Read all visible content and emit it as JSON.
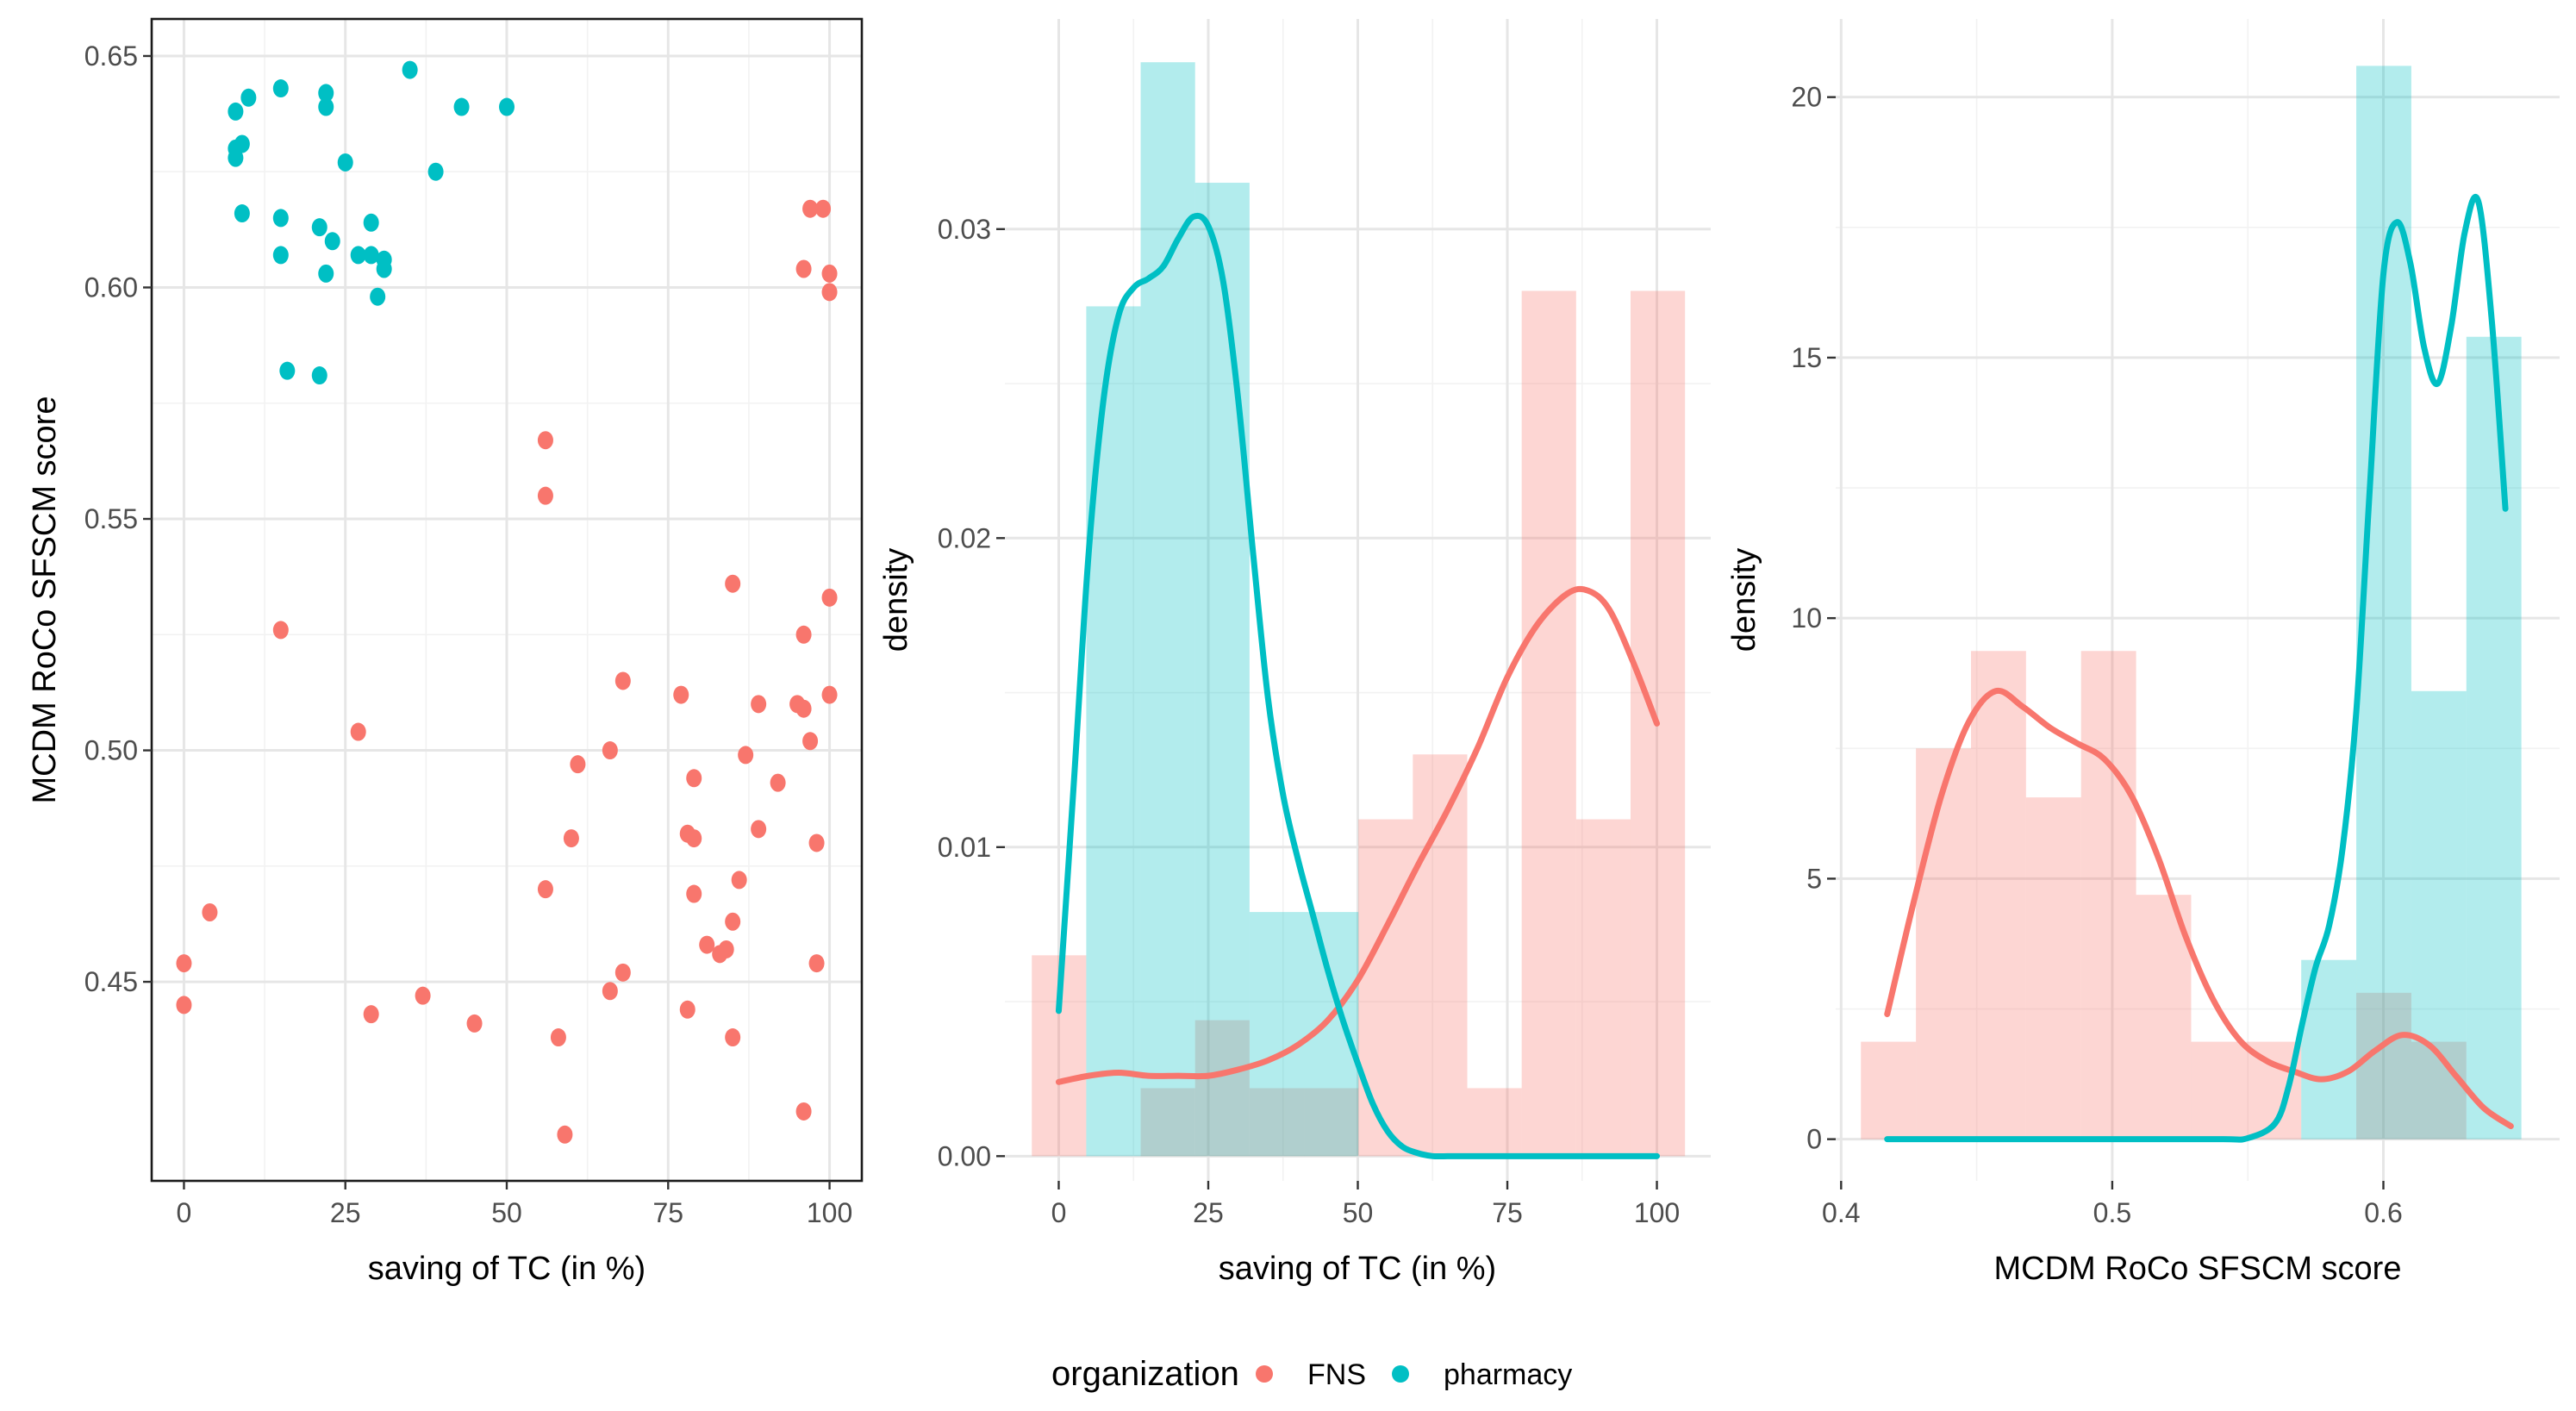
{
  "colors": {
    "FNS": "#F8766D",
    "pharmacy": "#00BFC4"
  },
  "legend": {
    "title": "organization",
    "items": [
      {
        "key": "FNS",
        "label": "FNS"
      },
      {
        "key": "pharmacy",
        "label": "pharmacy"
      }
    ]
  },
  "chart_data": [
    {
      "type": "scatter",
      "xlabel": "saving of TC (in %)",
      "ylabel": "MCDM RoCo SFSCM score",
      "xlim": [
        -5,
        105
      ],
      "ylim": [
        0.407,
        0.658
      ],
      "xticks": [
        0,
        25,
        50,
        75,
        100
      ],
      "xtick_labels": [
        "0",
        "25",
        "50",
        "75",
        "100"
      ],
      "yticks": [
        0.45,
        0.5,
        0.55,
        0.6,
        0.65
      ],
      "ytick_labels": [
        "0.45",
        "0.50",
        "0.55",
        "0.60",
        "0.65"
      ],
      "grid": true,
      "border": true,
      "series": [
        {
          "name": "pharmacy",
          "points": [
            [
              8,
              0.638
            ],
            [
              10,
              0.641
            ],
            [
              15,
              0.643
            ],
            [
              22,
              0.642
            ],
            [
              22,
              0.639
            ],
            [
              35,
              0.647
            ],
            [
              43,
              0.639
            ],
            [
              50,
              0.639
            ],
            [
              8,
              0.628
            ],
            [
              9,
              0.631
            ],
            [
              8,
              0.63
            ],
            [
              25,
              0.627
            ],
            [
              39,
              0.625
            ],
            [
              9,
              0.616
            ],
            [
              15,
              0.615
            ],
            [
              29,
              0.614
            ],
            [
              21,
              0.613
            ],
            [
              23,
              0.61
            ],
            [
              15,
              0.607
            ],
            [
              27,
              0.607
            ],
            [
              29,
              0.607
            ],
            [
              31,
              0.606
            ],
            [
              31,
              0.604
            ],
            [
              22,
              0.603
            ],
            [
              30,
              0.598
            ],
            [
              16,
              0.582
            ],
            [
              21,
              0.581
            ]
          ]
        },
        {
          "name": "FNS",
          "points": [
            [
              97,
              0.617
            ],
            [
              99,
              0.617
            ],
            [
              96,
              0.604
            ],
            [
              100,
              0.603
            ],
            [
              100,
              0.599
            ],
            [
              56,
              0.567
            ],
            [
              56,
              0.555
            ],
            [
              85,
              0.536
            ],
            [
              100,
              0.533
            ],
            [
              15,
              0.526
            ],
            [
              96,
              0.525
            ],
            [
              68,
              0.515
            ],
            [
              77,
              0.512
            ],
            [
              100,
              0.512
            ],
            [
              95,
              0.51
            ],
            [
              96,
              0.509
            ],
            [
              89,
              0.51
            ],
            [
              27,
              0.504
            ],
            [
              97,
              0.502
            ],
            [
              66,
              0.5
            ],
            [
              87,
              0.499
            ],
            [
              61,
              0.497
            ],
            [
              79,
              0.494
            ],
            [
              92,
              0.493
            ],
            [
              89,
              0.483
            ],
            [
              78,
              0.482
            ],
            [
              79,
              0.481
            ],
            [
              60,
              0.481
            ],
            [
              98,
              0.48
            ],
            [
              86,
              0.472
            ],
            [
              56,
              0.47
            ],
            [
              79,
              0.469
            ],
            [
              4,
              0.465
            ],
            [
              85,
              0.463
            ],
            [
              81,
              0.458
            ],
            [
              84,
              0.457
            ],
            [
              83,
              0.456
            ],
            [
              0,
              0.454
            ],
            [
              98,
              0.454
            ],
            [
              68,
              0.452
            ],
            [
              66,
              0.448
            ],
            [
              37,
              0.447
            ],
            [
              0,
              0.445
            ],
            [
              78,
              0.444
            ],
            [
              29,
              0.443
            ],
            [
              45,
              0.441
            ],
            [
              58,
              0.438
            ],
            [
              85,
              0.438
            ],
            [
              96,
              0.422
            ],
            [
              59,
              0.417
            ]
          ]
        }
      ]
    },
    {
      "type": "area",
      "xlabel": "saving of TC (in %)",
      "ylabel": "density",
      "xlim": [
        -9,
        109
      ],
      "ylim": [
        -0.0008,
        0.0368
      ],
      "xticks": [
        0,
        25,
        50,
        75,
        100
      ],
      "xtick_labels": [
        "0",
        "25",
        "50",
        "75",
        "100"
      ],
      "yticks": [
        0,
        0.01,
        0.02,
        0.03
      ],
      "ytick_labels": [
        "0.00",
        "0.01",
        "0.02",
        "0.03"
      ],
      "grid": true,
      "histogram": {
        "bin_width": 9.1,
        "series": [
          {
            "name": "FNS",
            "bins": [
              [
                -4.5,
                0.0065
              ],
              [
                4.6,
                0
              ],
              [
                13.7,
                0.0022
              ],
              [
                22.8,
                0.0044
              ],
              [
                31.9,
                0.0022
              ],
              [
                41.0,
                0.0022
              ],
              [
                50.1,
                0.0109
              ],
              [
                59.2,
                0.013
              ],
              [
                68.3,
                0.0022
              ],
              [
                77.4,
                0.028
              ],
              [
                86.5,
                0.0109
              ],
              [
                95.6,
                0.028
              ]
            ]
          },
          {
            "name": "pharmacy",
            "bins": [
              [
                4.6,
                0.0275
              ],
              [
                13.7,
                0.0354
              ],
              [
                22.8,
                0.0315
              ],
              [
                31.9,
                0.0079
              ],
              [
                41.0,
                0.0079
              ]
            ]
          }
        ]
      },
      "density": {
        "series": [
          {
            "name": "FNS",
            "x": [
              0,
              5,
              10,
              15,
              20,
              25,
              30,
              35,
              40,
              45,
              50,
              55,
              60,
              65,
              70,
              75,
              80,
              85,
              88.5,
              92,
              96,
              100
            ],
            "y": [
              0.0024,
              0.0026,
              0.0027,
              0.0026,
              0.0026,
              0.0026,
              0.0028,
              0.0031,
              0.0036,
              0.0044,
              0.0057,
              0.0075,
              0.0094,
              0.0112,
              0.0132,
              0.0155,
              0.0172,
              0.0182,
              0.0183,
              0.0177,
              0.016,
              0.014
            ]
          },
          {
            "name": "pharmacy",
            "x": [
              0,
              2.5,
              5,
              7.5,
              10,
              12.5,
              15,
              17.5,
              20,
              22.5,
              25,
              27.5,
              30,
              32.5,
              35,
              37.5,
              40,
              42.5,
              45,
              47.5,
              50,
              52.5,
              55,
              57.5,
              60,
              62.5,
              65,
              67.5,
              70,
              80,
              90,
              100
            ],
            "y": [
              0.0047,
              0.012,
              0.0195,
              0.0245,
              0.0272,
              0.0281,
              0.0284,
              0.0288,
              0.0297,
              0.0304,
              0.0301,
              0.0283,
              0.0245,
              0.0195,
              0.0148,
              0.0117,
              0.0096,
              0.0078,
              0.006,
              0.0044,
              0.003,
              0.0017,
              0.0008,
              0.0003,
              0.0001,
              0,
              0,
              0,
              0,
              0,
              0,
              0
            ]
          }
        ]
      }
    },
    {
      "type": "area",
      "xlabel": "MCDM RoCo SFSCM score",
      "ylabel": "density",
      "xlim": [
        0.398,
        0.665
      ],
      "ylim": [
        -0.8,
        21.5
      ],
      "xticks": [
        0.4,
        0.5,
        0.6
      ],
      "xtick_labels": [
        "0.4",
        "0.5",
        "0.6"
      ],
      "yticks": [
        0,
        5,
        10,
        15,
        20
      ],
      "ytick_labels": [
        "0",
        "5",
        "10",
        "15",
        "20"
      ],
      "grid": true,
      "histogram": {
        "bin_width": 0.0203,
        "series": [
          {
            "name": "FNS",
            "bins": [
              [
                0.4073,
                1.87
              ],
              [
                0.4276,
                7.5
              ],
              [
                0.4479,
                9.37
              ],
              [
                0.4682,
                6.56
              ],
              [
                0.4885,
                9.37
              ],
              [
                0.5088,
                4.69
              ],
              [
                0.5291,
                1.87
              ],
              [
                0.5494,
                1.87
              ],
              [
                0.5697,
                0
              ],
              [
                0.59,
                2.81
              ],
              [
                0.6103,
                1.87
              ]
            ]
          },
          {
            "name": "pharmacy",
            "bins": [
              [
                0.5697,
                3.44
              ],
              [
                0.59,
                20.6
              ],
              [
                0.6103,
                8.6
              ],
              [
                0.6306,
                15.4
              ]
            ]
          }
        ]
      },
      "density": {
        "series": [
          {
            "name": "FNS",
            "x": [
              0.417,
              0.427,
              0.437,
              0.447,
              0.457,
              0.467,
              0.477,
              0.487,
              0.497,
              0.507,
              0.517,
              0.527,
              0.537,
              0.547,
              0.557,
              0.567,
              0.577,
              0.587,
              0.597,
              0.607,
              0.617,
              0.627,
              0.637,
              0.647
            ],
            "y": [
              2.4,
              4.6,
              6.6,
              8.0,
              8.6,
              8.3,
              7.9,
              7.6,
              7.3,
              6.6,
              5.4,
              3.9,
              2.7,
              1.9,
              1.5,
              1.3,
              1.15,
              1.3,
              1.7,
              2.0,
              1.8,
              1.2,
              0.6,
              0.25
            ]
          },
          {
            "name": "pharmacy",
            "x": [
              0.417,
              0.45,
              0.5,
              0.54,
              0.55,
              0.56,
              0.565,
              0.57,
              0.575,
              0.58,
              0.585,
              0.59,
              0.595,
              0.6,
              0.605,
              0.61,
              0.615,
              0.62,
              0.625,
              0.63,
              0.635,
              0.64,
              0.645
            ],
            "y": [
              0,
              0,
              0,
              0,
              0.02,
              0.3,
              1.0,
              2.2,
              3.3,
              4.1,
              5.6,
              8.2,
              12.5,
              16.6,
              17.6,
              16.8,
              15.2,
              14.5,
              15.6,
              17.4,
              18.0,
              15.7,
              12.1
            ]
          }
        ]
      }
    }
  ]
}
